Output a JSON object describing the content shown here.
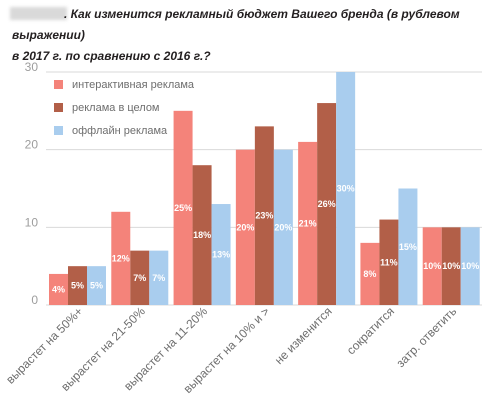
{
  "title": {
    "line1": ". Как изменится рекламный бюджет Вашего бренда (в рублевом выражении)",
    "line2": "в 2017 г. по сравнению с 2016 г.?"
  },
  "chart_data": {
    "type": "bar",
    "title": ". Как изменится рекламный бюджет Вашего бренда (в рублевом выражении) в 2017 г. по сравнению с 2016 г.?",
    "categories": [
      "вырастет на 50%+",
      "вырастет на 21-50%",
      "вырастет на 11-20%",
      "вырастет на 10% и >",
      "не изменится",
      "сократится",
      "затр. ответить"
    ],
    "series": [
      {
        "name": "интерактивная реклама",
        "color": "#f4837a",
        "values": [
          4,
          12,
          25,
          20,
          21,
          8,
          10
        ],
        "labels": [
          "4%",
          "12%",
          "25%",
          "20%",
          "21%",
          "8%",
          "10%"
        ]
      },
      {
        "name": "реклама в целом",
        "color": "#b25f48",
        "values": [
          5,
          7,
          18,
          23,
          26,
          11,
          10
        ],
        "labels": [
          "5%",
          "7%",
          "18%",
          "23%",
          "26%",
          "11%",
          "10%"
        ]
      },
      {
        "name": "оффлайн реклама",
        "color": "#a9cdee",
        "values": [
          5,
          7,
          13,
          20,
          30,
          15,
          10
        ],
        "labels": [
          "5%",
          "7%",
          "13%",
          "20%",
          "30%",
          "15%",
          "10%"
        ]
      }
    ],
    "yticks": [
      "0",
      "10",
      "20",
      "30"
    ],
    "ylim": [
      0,
      30
    ],
    "grid": true,
    "legend": "top-left"
  }
}
